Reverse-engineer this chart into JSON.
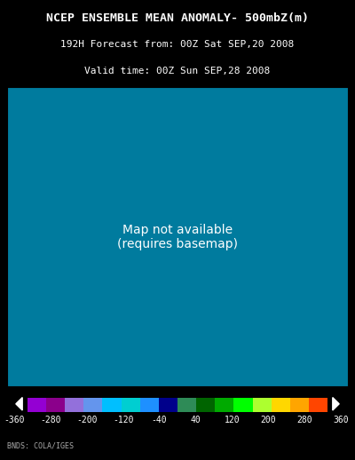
{
  "title_line1": "NCEP ENSEMBLE MEAN ANOMALY- 500mbZ(m)",
  "title_line2": "192H Forecast from: 00Z Sat SEP,20 2008",
  "title_line3": "Valid time: 00Z Sun SEP,28 2008",
  "colorbar_ticks": [
    -360,
    -280,
    -200,
    -120,
    -40,
    40,
    120,
    200,
    280,
    360
  ],
  "colorbar_colors": [
    "#9400D3",
    "#8B008B",
    "#9370DB",
    "#6495ED",
    "#00BFFF",
    "#00CED1",
    "#1E90FF",
    "#00008B",
    "#006400",
    "#008000",
    "#00FF00",
    "#ADFF2F",
    "#FFD700",
    "#FFA500",
    "#FF4500",
    "#FF0000"
  ],
  "background_color": "#000000",
  "map_bg_color": "#007B9E",
  "text_color": "#FFFFFF",
  "credits": "BNDS: COLA/IGES"
}
